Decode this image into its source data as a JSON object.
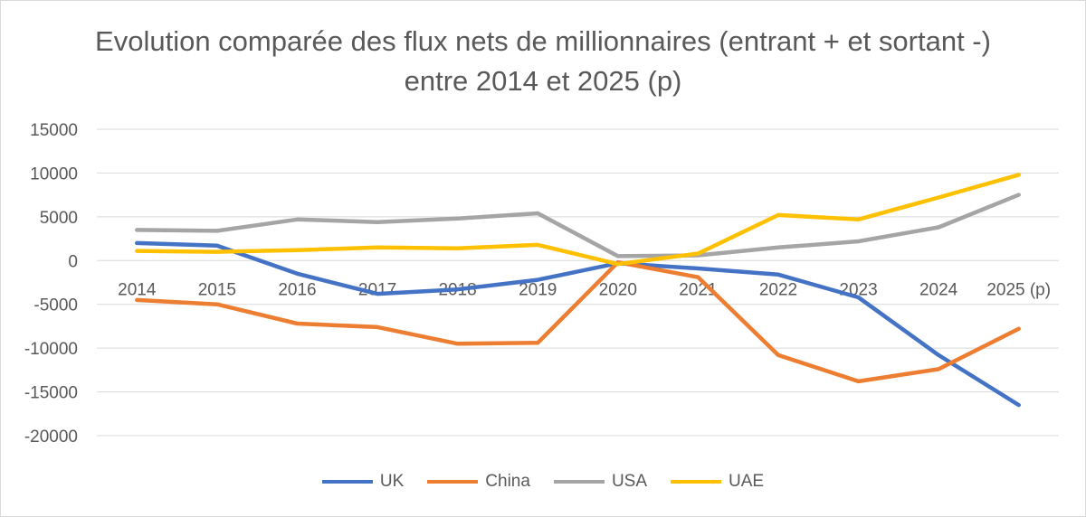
{
  "chart_data": {
    "type": "line",
    "title": "Evolution comparée des flux nets de millionnaires (entrant + et sortant -) entre 2014 et 2025 (p)",
    "categories": [
      "2014",
      "2015",
      "2016",
      "2017",
      "2018",
      "2019",
      "2020",
      "2021",
      "2022",
      "2023",
      "2024",
      "2025 (p)"
    ],
    "ylim": [
      -20000,
      15000
    ],
    "yticks": [
      15000,
      10000,
      5000,
      0,
      -5000,
      -10000,
      -15000,
      -20000
    ],
    "grid": true,
    "legend_position": "bottom",
    "series": [
      {
        "name": "UK",
        "color": "#4472C4",
        "values": [
          2000,
          1700,
          -1500,
          -3800,
          -3300,
          -2200,
          -300,
          -900,
          -1600,
          -4200,
          -10800,
          -16500
        ]
      },
      {
        "name": "China",
        "color": "#ED7D31",
        "values": [
          -4500,
          -5000,
          -7200,
          -7600,
          -9500,
          -9400,
          -200,
          -1900,
          -10800,
          -13800,
          -12400,
          -7800
        ]
      },
      {
        "name": "USA",
        "color": "#A5A5A5",
        "values": [
          3500,
          3400,
          4700,
          4400,
          4800,
          5400,
          500,
          600,
          1500,
          2200,
          3800,
          7500
        ]
      },
      {
        "name": "UAE",
        "color": "#FFC000",
        "values": [
          1100,
          1000,
          1200,
          1500,
          1400,
          1800,
          -400,
          800,
          5200,
          4700,
          7200,
          9800
        ]
      }
    ]
  }
}
